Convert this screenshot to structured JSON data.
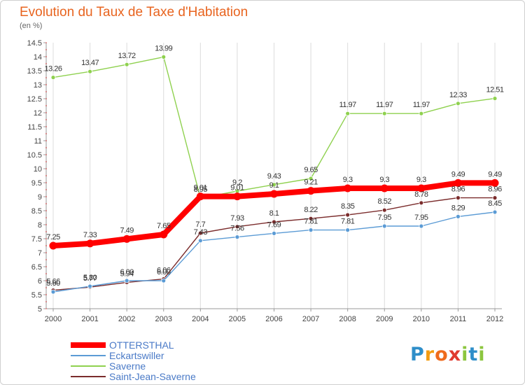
{
  "chart_data": {
    "type": "line",
    "title": "Evolution du Taux de Taxe d'Habitation",
    "subtitle": "(en %)",
    "x": [
      "2000",
      "2001",
      "2002",
      "2003",
      "2004",
      "2005",
      "2006",
      "2007",
      "2008",
      "2009",
      "2010",
      "2011",
      "2012"
    ],
    "ylim": [
      5,
      14.5
    ],
    "yticks": [
      "5",
      "5.5",
      "6",
      "6.5",
      "7",
      "7.5",
      "8",
      "8.5",
      "9",
      "9.5",
      "10",
      "10.5",
      "11",
      "11.5",
      "12",
      "12.5",
      "13",
      "13.5",
      "14",
      "14.5"
    ],
    "grid": "vertical",
    "legend": "bottom-left",
    "series": [
      {
        "name": "OTTERSTHAL",
        "color": "#ff0000",
        "values": [
          7.25,
          7.33,
          7.49,
          7.65,
          9.01,
          9.01,
          9.1,
          9.21,
          9.3,
          9.3,
          9.3,
          9.49,
          9.49
        ],
        "labels": [
          "7.25",
          "7.33",
          "7.49",
          "7.65",
          "9.01",
          "9.01",
          "9.1",
          "9.21",
          "9.3",
          "9.3",
          "9.3",
          "9.49",
          "9.49"
        ]
      },
      {
        "name": "Eckartswiller",
        "color": "#5b9bd5",
        "values": [
          5.6,
          5.8,
          6.0,
          6.0,
          7.43,
          7.56,
          7.69,
          7.81,
          7.81,
          7.95,
          7.95,
          8.29,
          8.45
        ],
        "labels": [
          "5.60",
          "5.80",
          "6.00",
          "6.00",
          "7.43",
          "7.56",
          "7.69",
          "7.81",
          "7.81",
          "7.95",
          "7.95",
          "8.29",
          "8.45"
        ]
      },
      {
        "name": "Saverne",
        "color": "#8fd14f",
        "values": [
          13.26,
          13.47,
          13.72,
          13.99,
          8.95,
          9.2,
          9.43,
          9.65,
          11.97,
          11.97,
          11.97,
          12.33,
          12.51
        ],
        "labels": [
          "13.26",
          "13.47",
          "13.72",
          "13.99",
          "8.95",
          "9.2",
          "9.43",
          "9.65",
          "11.97",
          "11.97",
          "11.97",
          "12.33",
          "12.51"
        ]
      },
      {
        "name": "Saint-Jean-Saverne",
        "color": "#7b2c2c",
        "values": [
          5.66,
          5.77,
          5.94,
          6.06,
          7.7,
          7.93,
          8.1,
          8.22,
          8.35,
          8.52,
          8.78,
          8.96,
          8.96
        ],
        "labels": [
          "5.66",
          "5.77",
          "5.94",
          "6.06",
          "7.7",
          "7.93",
          "8.1",
          "8.22",
          "8.35",
          "8.52",
          "8.78",
          "8.96",
          "8.96"
        ]
      }
    ]
  },
  "logo": {
    "letters": [
      "P",
      "r",
      "o",
      "x",
      "i",
      "t",
      "i"
    ],
    "colors": [
      "#2e8ec9",
      "#f39c12",
      "#ef6b1d",
      "#e03a2f",
      "#8cc63f",
      "#2e8ec9",
      "#8cc63f"
    ]
  }
}
